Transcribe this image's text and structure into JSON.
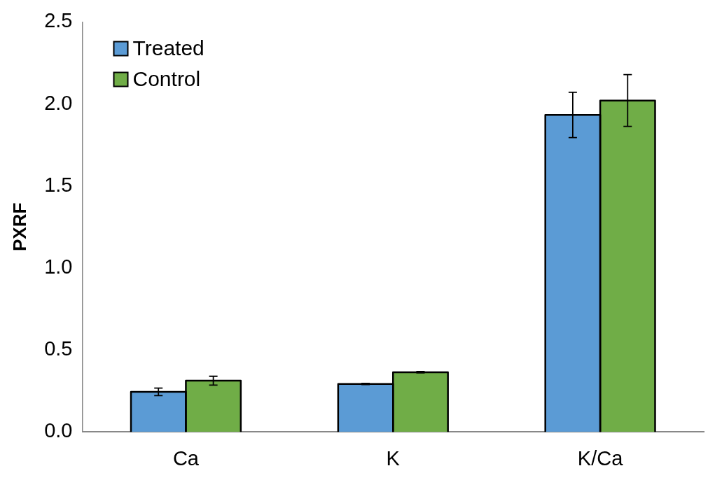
{
  "chart_data": {
    "type": "bar",
    "ylabel": "PXRF",
    "categories": [
      "Ca",
      "K",
      "K/Ca"
    ],
    "series": [
      {
        "name": "Treated",
        "color": "#5b9bd5",
        "values": [
          0.244,
          0.292,
          1.933
        ],
        "errors": [
          0.023,
          0.004,
          0.138
        ]
      },
      {
        "name": "Control",
        "color": "#70ad47",
        "values": [
          0.312,
          0.364,
          2.021
        ],
        "errors": [
          0.027,
          0.004,
          0.158
        ]
      }
    ],
    "ylim": [
      0,
      2.5
    ],
    "yticks": [
      {
        "value": 0,
        "label": "0.0"
      },
      {
        "value": 0.5,
        "label": "0.5"
      },
      {
        "value": 1,
        "label": "1.0"
      },
      {
        "value": 1.5,
        "label": "1.5"
      },
      {
        "value": 2,
        "label": "2.0"
      },
      {
        "value": 2.5,
        "label": "2.5"
      }
    ],
    "grid": false,
    "legend": "top left"
  }
}
